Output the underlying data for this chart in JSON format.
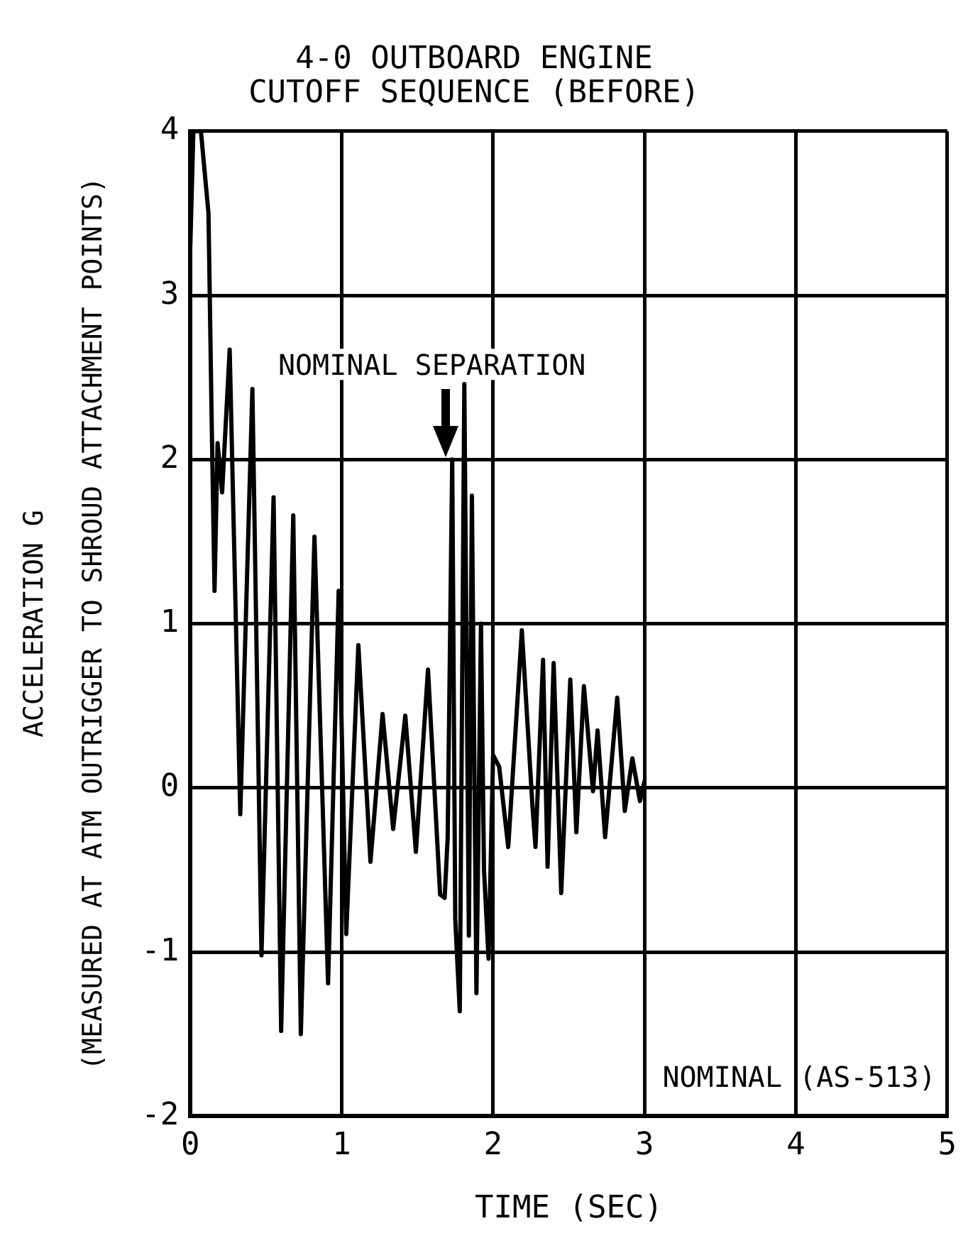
{
  "chart_data": {
    "type": "line",
    "title": "4-0 OUTBOARD ENGINE\nCUTOFF SEQUENCE (BEFORE)",
    "xlabel": "TIME (SEC)",
    "ylabel": "ACCELERATION G\n(MEASURED AT ATM OUTRIGGER TO SHROUD ATTACHMENT POINTS)",
    "series": [
      {
        "color": "#000000",
        "x": [
          0,
          0.02,
          0.07,
          0.12,
          0.14,
          0.16,
          0.18,
          0.21,
          0.26,
          0.33,
          0.41,
          0.47,
          0.55,
          0.6,
          0.68,
          0.73,
          0.82,
          0.91,
          0.98,
          1.03,
          1.11,
          1.19,
          1.27,
          1.34,
          1.42,
          1.49,
          1.57,
          1.65,
          1.68,
          1.7,
          1.73,
          1.75,
          1.78,
          1.81,
          1.84,
          1.86,
          1.89,
          1.92,
          1.94,
          1.97,
          2.0,
          2.04,
          2.1,
          2.19,
          2.26,
          2.28,
          2.33,
          2.36,
          2.4,
          2.45,
          2.51,
          2.55,
          2.6,
          2.66,
          2.69,
          2.74,
          2.82,
          2.87,
          2.92,
          2.97,
          3.0
        ],
        "values": [
          3.3,
          4,
          4,
          3.5,
          2.3,
          1.2,
          2.1,
          1.8,
          2.67,
          -0.16,
          2.43,
          -1.02,
          1.77,
          -1.48,
          1.66,
          -1.5,
          1.53,
          -1.19,
          1.2,
          -0.89,
          0.87,
          -0.45,
          0.45,
          -0.25,
          0.44,
          -0.39,
          0.72,
          -0.65,
          -0.67,
          -0.3,
          2.0,
          -0.8,
          -1.36,
          2.46,
          -0.9,
          1.78,
          -1.25,
          1.0,
          -0.5,
          -1.04,
          0.2,
          0.13,
          -0.36,
          0.96,
          -0.11,
          -0.36,
          0.78,
          -0.48,
          0.76,
          -0.64,
          0.66,
          -0.27,
          0.62,
          -0.02,
          0.35,
          -0.3,
          0.55,
          -0.14,
          0.18,
          -0.08,
          0.04
        ]
      }
    ],
    "xlim": [
      0,
      5
    ],
    "xticks": [
      0,
      1,
      2,
      3,
      4,
      5
    ],
    "ylim": [
      -2,
      4
    ],
    "yticks": [
      -2,
      -1,
      0,
      1,
      2,
      3,
      4
    ],
    "grid": true,
    "legend": false,
    "marker": "none",
    "line_style": "solid",
    "annotations": [
      {
        "text": "NOMINAL SEPARATION",
        "x": 1.69,
        "y": 2.0
      },
      "NOMINAL (AS-513)"
    ]
  }
}
